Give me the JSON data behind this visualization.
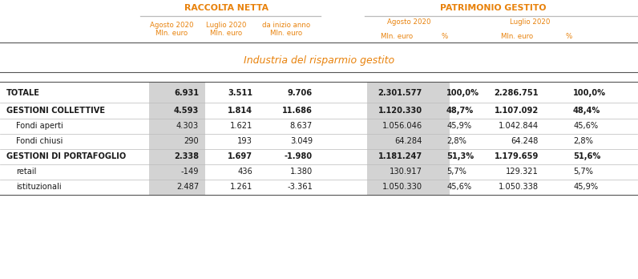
{
  "title_raccolta": "RACCOLTA NETTA",
  "title_patrimonio": "PATRIMONIO GESTITO",
  "header_color": "#E8820C",
  "bg_color": "#ffffff",
  "gray_bg": "#D3D3D3",
  "section_title": "Industria del risparmio gestito",
  "rows": [
    {
      "label": "TOTALE",
      "bold": true,
      "indent": false,
      "raccolta": [
        "6.931",
        "3.511",
        "9.706"
      ],
      "patrimonio": [
        "2.301.577",
        "100,0%",
        "2.286.751",
        "100,0%"
      ]
    },
    {
      "label": "GESTIONI COLLETTIVE",
      "bold": true,
      "indent": false,
      "raccolta": [
        "4.593",
        "1.814",
        "11.686"
      ],
      "patrimonio": [
        "1.120.330",
        "48,7%",
        "1.107.092",
        "48,4%"
      ]
    },
    {
      "label": "Fondi aperti",
      "bold": false,
      "indent": true,
      "raccolta": [
        "4.303",
        "1.621",
        "8.637"
      ],
      "patrimonio": [
        "1.056.046",
        "45,9%",
        "1.042.844",
        "45,6%"
      ]
    },
    {
      "label": "Fondi chiusi",
      "bold": false,
      "indent": true,
      "raccolta": [
        "290",
        "193",
        "3.049"
      ],
      "patrimonio": [
        "64.284",
        "2,8%",
        "64.248",
        "2,8%"
      ]
    },
    {
      "label": "GESTIONI DI PORTAFOGLIO",
      "bold": true,
      "indent": false,
      "raccolta": [
        "2.338",
        "1.697",
        "-1.980"
      ],
      "patrimonio": [
        "1.181.247",
        "51,3%",
        "1.179.659",
        "51,6%"
      ]
    },
    {
      "label": "retail",
      "bold": false,
      "indent": true,
      "raccolta": [
        "-149",
        "436",
        "1.380"
      ],
      "patrimonio": [
        "130.917",
        "5,7%",
        "129.321",
        "5,7%"
      ]
    },
    {
      "label": "istituzionali",
      "bold": false,
      "indent": true,
      "raccolta": [
        "2.487",
        "1.261",
        "-3.361"
      ],
      "patrimonio": [
        "1.050.330",
        "45,6%",
        "1.050.338",
        "45,9%"
      ]
    }
  ]
}
